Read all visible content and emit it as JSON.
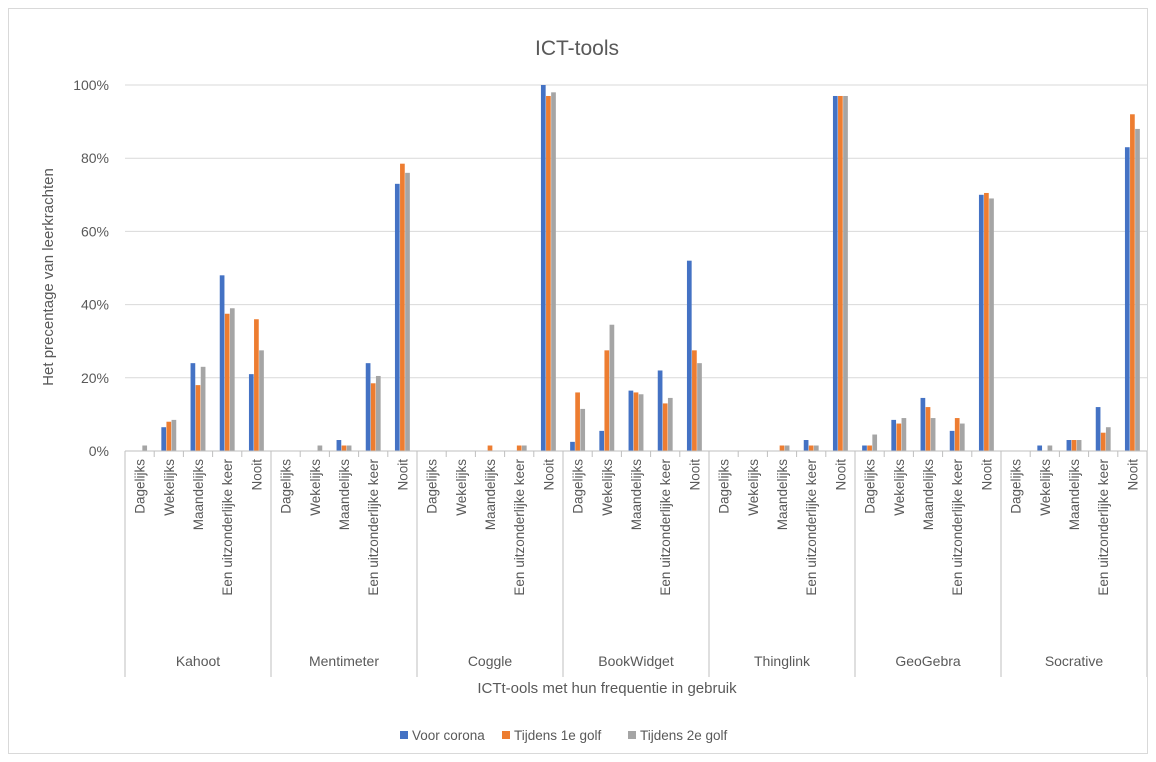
{
  "chart_data": {
    "type": "bar",
    "title": "ICT-tools",
    "xlabel": "ICTt-ools met hun frequentie in gebruik",
    "ylabel": "Het precentage van leerkrachten",
    "ylim": [
      0,
      100
    ],
    "yticks": [
      "0%",
      "20%",
      "40%",
      "60%",
      "80%",
      "100%"
    ],
    "grid": true,
    "legend_position": "bottom",
    "groups": [
      "Kahoot",
      "Mentimeter",
      "Coggle",
      "BookWidget",
      "Thinglink",
      "GeoGebra",
      "Socrative"
    ],
    "subcategories": [
      "Dagelijks",
      "Wekelijks",
      "Maandelijks",
      "Een uitzonderlijke keer",
      "Nooit"
    ],
    "series": [
      {
        "name": "Voor corona",
        "color": "#4472c4",
        "values": [
          0,
          6.5,
          24,
          48,
          21,
          0,
          0,
          3,
          24,
          73,
          0,
          0,
          0,
          0,
          100,
          2.5,
          5.5,
          16.5,
          22,
          52,
          0,
          0,
          0,
          3,
          97,
          1.5,
          8.5,
          14.5,
          5.5,
          70,
          0,
          1.5,
          3,
          12,
          83
        ]
      },
      {
        "name": "Tijdens 1e golf",
        "color": "#ed7d31",
        "values": [
          0,
          8,
          18,
          37.5,
          36,
          0,
          0,
          1.5,
          18.5,
          78.5,
          0,
          0,
          1.5,
          1.5,
          97,
          16,
          27.5,
          16,
          13,
          27.5,
          0,
          0,
          1.5,
          1.5,
          97,
          1.5,
          7.5,
          12,
          9,
          70.5,
          0,
          0,
          3,
          5,
          92
        ]
      },
      {
        "name": "Tijdens 2e golf",
        "color": "#a5a5a5",
        "values": [
          1.5,
          8.5,
          23,
          39,
          27.5,
          0,
          1.5,
          1.5,
          20.5,
          76,
          0,
          0,
          0,
          1.5,
          98,
          11.5,
          34.5,
          15.5,
          14.5,
          24,
          0,
          0,
          1.5,
          1.5,
          97,
          4.5,
          9,
          9,
          7.5,
          69,
          0,
          1.5,
          3,
          6.5,
          88
        ]
      }
    ]
  }
}
